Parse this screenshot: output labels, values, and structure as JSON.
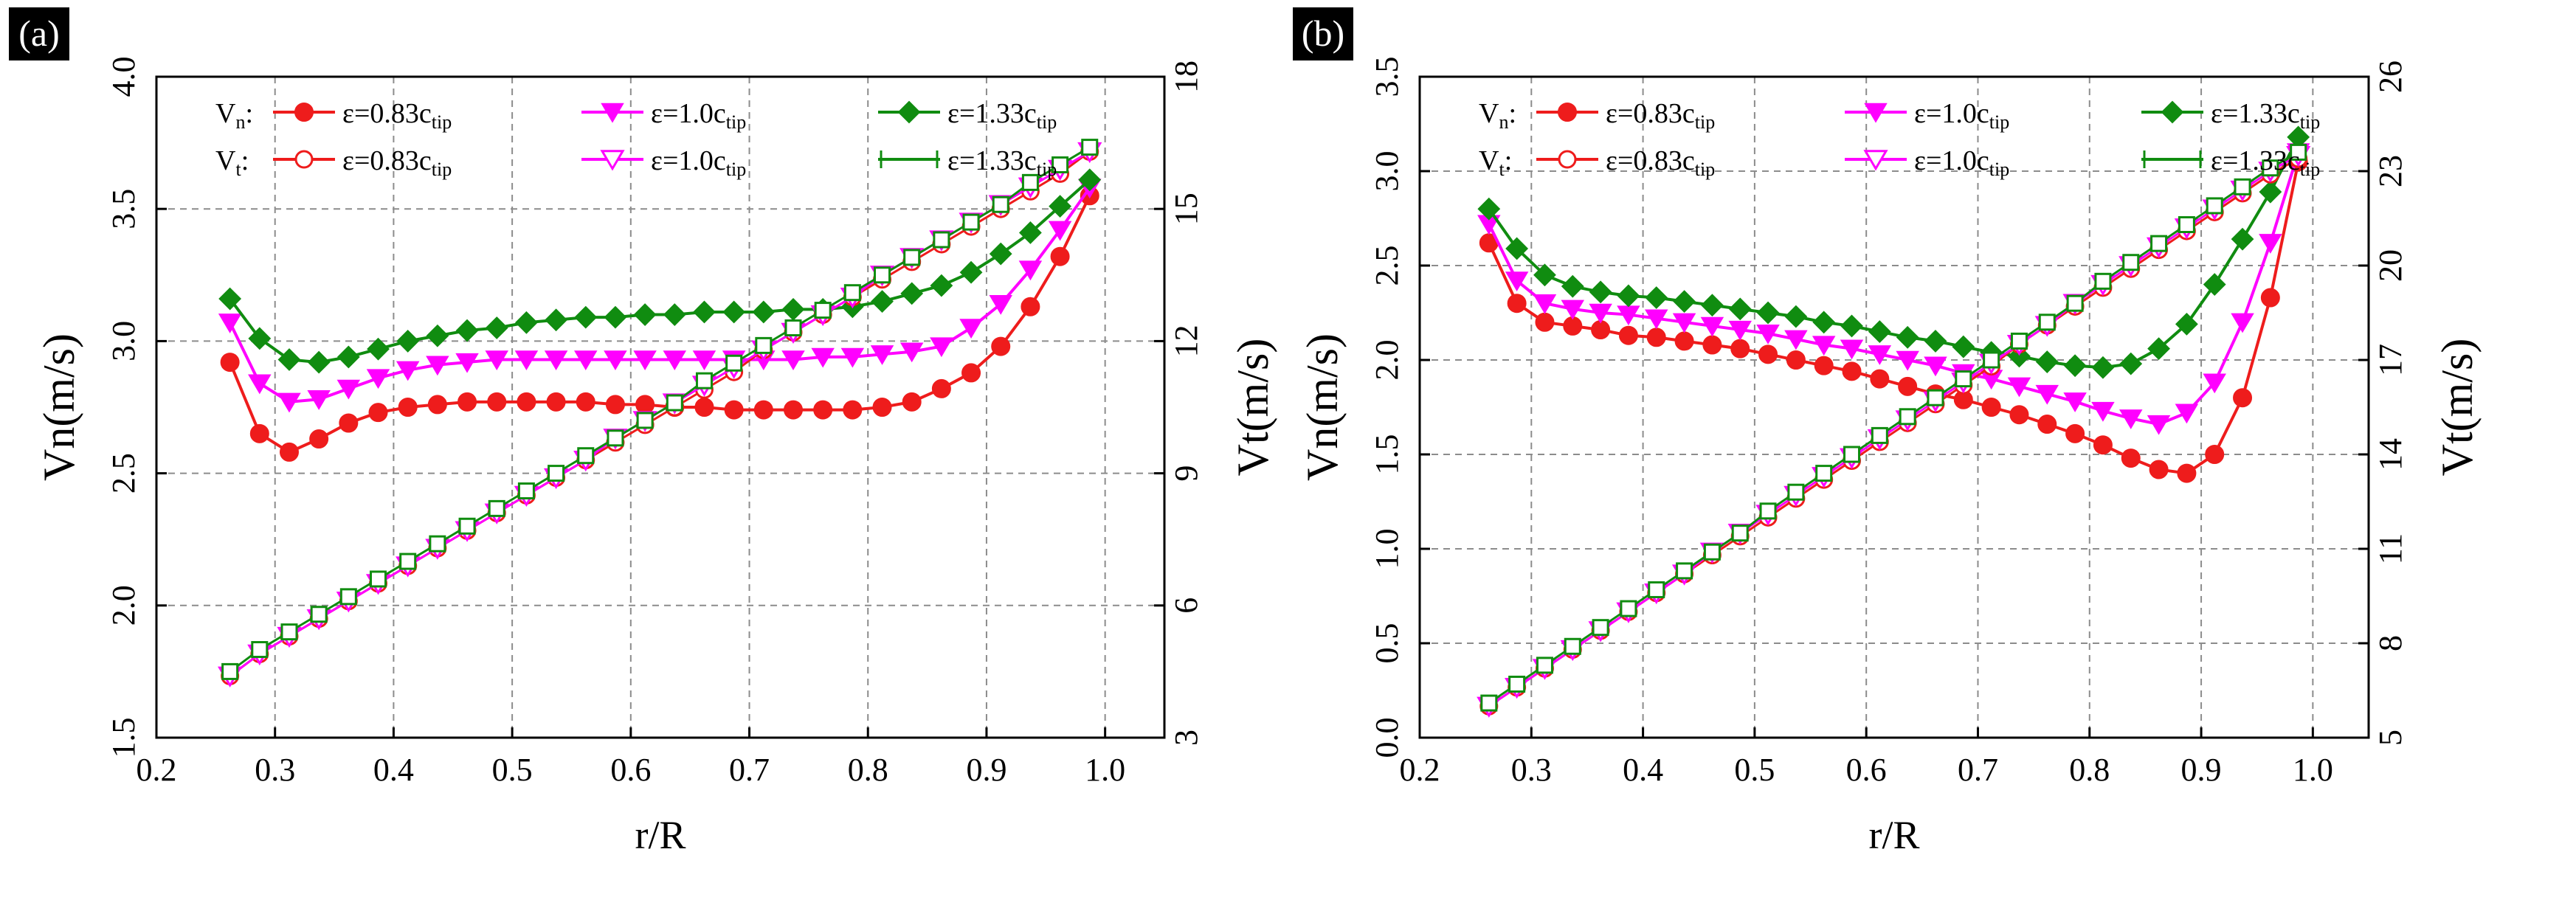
{
  "figure": {
    "panels": [
      "(a)",
      "(b)"
    ]
  },
  "legend": {
    "vn_prefix": "V",
    "vn_sub": "n",
    "vt_prefix": "V",
    "vt_sub": "t",
    "colon": ":",
    "eps_prefix": "ε=",
    "c_letter": "c",
    "tip_sub": "tip",
    "coefs": [
      "0.83",
      "1.0",
      "1.33"
    ]
  },
  "styles": {
    "series_colors": [
      "#ee1c1c",
      "#ff00ff",
      "#108c10"
    ],
    "grid_color": "#8c8c8c"
  },
  "chart_data": [
    {
      "type": "line",
      "panel": "(a)",
      "xlabel": "r/R",
      "ylabel_left": "Vn(m/s)",
      "ylabel_right": "Vt(m/s)",
      "xlim": [
        0.2,
        1.05
      ],
      "ylim_left": [
        1.5,
        4.0
      ],
      "ylim_right": [
        3,
        18
      ],
      "x_ticks": [
        "0.2",
        "0.3",
        "0.4",
        "0.5",
        "0.6",
        "0.7",
        "0.8",
        "0.9",
        "1.0"
      ],
      "y_left_ticks": [
        "1.5",
        "2.0",
        "2.5",
        "3.0",
        "3.5",
        "4.0"
      ],
      "y_right_ticks": [
        "3",
        "6",
        "9",
        "12",
        "15",
        "18"
      ],
      "x": [
        0.262,
        0.287,
        0.312,
        0.337,
        0.362,
        0.387,
        0.412,
        0.437,
        0.462,
        0.487,
        0.512,
        0.537,
        0.562,
        0.587,
        0.612,
        0.637,
        0.662,
        0.687,
        0.712,
        0.737,
        0.762,
        0.787,
        0.812,
        0.837,
        0.862,
        0.887,
        0.912,
        0.937,
        0.962,
        0.987
      ],
      "series": [
        {
          "name": "Vn: ε=0.83c_tip",
          "axis": "left",
          "marker": "circle",
          "filled": true,
          "values": [
            2.92,
            2.65,
            2.58,
            2.63,
            2.69,
            2.73,
            2.75,
            2.76,
            2.77,
            2.77,
            2.77,
            2.77,
            2.77,
            2.76,
            2.76,
            2.75,
            2.75,
            2.74,
            2.74,
            2.74,
            2.74,
            2.74,
            2.75,
            2.77,
            2.82,
            2.88,
            2.98,
            3.13,
            3.32,
            3.55
          ]
        },
        {
          "name": "Vn: ε=1.0c_tip",
          "axis": "left",
          "marker": "triangle-down",
          "filled": true,
          "values": [
            3.07,
            2.84,
            2.77,
            2.78,
            2.82,
            2.86,
            2.89,
            2.91,
            2.92,
            2.93,
            2.93,
            2.93,
            2.93,
            2.93,
            2.93,
            2.93,
            2.93,
            2.93,
            2.93,
            2.93,
            2.94,
            2.94,
            2.95,
            2.96,
            2.98,
            3.05,
            3.14,
            3.27,
            3.42,
            3.58
          ]
        },
        {
          "name": "Vn: ε=1.33c_tip",
          "axis": "left",
          "marker": "diamond",
          "filled": true,
          "values": [
            3.16,
            3.01,
            2.93,
            2.92,
            2.94,
            2.97,
            3.0,
            3.02,
            3.04,
            3.05,
            3.07,
            3.08,
            3.09,
            3.09,
            3.1,
            3.1,
            3.11,
            3.11,
            3.11,
            3.12,
            3.12,
            3.13,
            3.15,
            3.18,
            3.21,
            3.26,
            3.33,
            3.41,
            3.51,
            3.61
          ]
        },
        {
          "name": "Vt: ε=0.83c_tip",
          "axis": "right",
          "marker": "circle",
          "filled": false,
          "values": [
            4.4,
            4.9,
            5.3,
            5.7,
            6.1,
            6.5,
            6.9,
            7.3,
            7.7,
            8.1,
            8.5,
            8.9,
            9.3,
            9.7,
            10.1,
            10.5,
            10.9,
            11.3,
            11.8,
            12.2,
            12.6,
            13.0,
            13.4,
            13.8,
            14.2,
            14.6,
            15.0,
            15.4,
            15.8,
            16.3
          ]
        },
        {
          "name": "Vt: ε=1.0c_tip",
          "axis": "right",
          "marker": "triangle-down",
          "filled": false,
          "values": [
            4.4,
            4.9,
            5.3,
            5.7,
            6.1,
            6.5,
            6.9,
            7.3,
            7.7,
            8.1,
            8.5,
            8.9,
            9.3,
            9.8,
            10.2,
            10.6,
            11.0,
            11.4,
            11.8,
            12.2,
            12.6,
            13.0,
            13.5,
            13.9,
            14.3,
            14.7,
            15.1,
            15.5,
            15.9,
            16.3
          ]
        },
        {
          "name": "Vt: ε=1.33c_tip",
          "axis": "right",
          "marker": "square",
          "filled": false,
          "values": [
            4.5,
            5.0,
            5.4,
            5.8,
            6.2,
            6.6,
            7.0,
            7.4,
            7.8,
            8.2,
            8.6,
            9.0,
            9.4,
            9.8,
            10.2,
            10.6,
            11.1,
            11.5,
            11.9,
            12.3,
            12.7,
            13.1,
            13.5,
            13.9,
            14.3,
            14.7,
            15.1,
            15.6,
            16.0,
            16.4
          ]
        }
      ]
    },
    {
      "type": "line",
      "panel": "(b)",
      "xlabel": "r/R",
      "ylabel_left": "Vn(m/s)",
      "ylabel_right": "Vt(m/s)",
      "xlim": [
        0.2,
        1.05
      ],
      "ylim_left": [
        0.0,
        3.5
      ],
      "ylim_right": [
        5,
        26
      ],
      "x_ticks": [
        "0.2",
        "0.3",
        "0.4",
        "0.5",
        "0.6",
        "0.7",
        "0.8",
        "0.9",
        "1.0"
      ],
      "y_left_ticks": [
        "0.0",
        "0.5",
        "1.0",
        "1.5",
        "2.0",
        "2.5",
        "3.0",
        "3.5"
      ],
      "y_right_ticks": [
        "5",
        "8",
        "11",
        "14",
        "17",
        "20",
        "23",
        "26"
      ],
      "x": [
        0.262,
        0.287,
        0.312,
        0.337,
        0.362,
        0.387,
        0.412,
        0.437,
        0.462,
        0.487,
        0.512,
        0.537,
        0.562,
        0.587,
        0.612,
        0.637,
        0.662,
        0.687,
        0.712,
        0.737,
        0.762,
        0.787,
        0.812,
        0.837,
        0.862,
        0.887,
        0.912,
        0.937,
        0.962,
        0.987
      ],
      "series": [
        {
          "name": "Vn: ε=0.83c_tip",
          "axis": "left",
          "marker": "circle",
          "filled": true,
          "values": [
            2.62,
            2.3,
            2.2,
            2.18,
            2.16,
            2.13,
            2.12,
            2.1,
            2.08,
            2.06,
            2.03,
            2.0,
            1.97,
            1.94,
            1.9,
            1.86,
            1.82,
            1.79,
            1.75,
            1.71,
            1.66,
            1.61,
            1.55,
            1.48,
            1.42,
            1.4,
            1.5,
            1.8,
            2.33,
            3.05
          ]
        },
        {
          "name": "Vn: ε=1.0c_tip",
          "axis": "left",
          "marker": "triangle-down",
          "filled": true,
          "values": [
            2.72,
            2.42,
            2.3,
            2.27,
            2.25,
            2.24,
            2.22,
            2.2,
            2.18,
            2.16,
            2.14,
            2.11,
            2.08,
            2.06,
            2.03,
            2.0,
            1.97,
            1.93,
            1.9,
            1.86,
            1.82,
            1.78,
            1.73,
            1.69,
            1.66,
            1.72,
            1.88,
            2.2,
            2.62,
            3.1
          ]
        },
        {
          "name": "Vn: ε=1.33c_tip",
          "axis": "left",
          "marker": "diamond",
          "filled": true,
          "values": [
            2.8,
            2.59,
            2.45,
            2.39,
            2.36,
            2.34,
            2.33,
            2.31,
            2.29,
            2.27,
            2.25,
            2.23,
            2.2,
            2.18,
            2.15,
            2.12,
            2.1,
            2.07,
            2.04,
            2.02,
            1.99,
            1.97,
            1.96,
            1.98,
            2.06,
            2.19,
            2.4,
            2.64,
            2.89,
            3.18
          ]
        },
        {
          "name": "Vt: ε=0.83c_tip",
          "axis": "right",
          "marker": "circle",
          "filled": false,
          "values": [
            6.0,
            6.6,
            7.2,
            7.8,
            8.4,
            9.0,
            9.6,
            10.2,
            10.8,
            11.4,
            12.0,
            12.6,
            13.2,
            13.8,
            14.4,
            15.0,
            15.6,
            16.2,
            16.8,
            17.5,
            18.1,
            18.7,
            19.3,
            19.9,
            20.5,
            21.1,
            21.7,
            22.3,
            22.9,
            23.4
          ]
        },
        {
          "name": "Vt: ε=1.0c_tip",
          "axis": "right",
          "marker": "triangle-down",
          "filled": false,
          "values": [
            6.0,
            6.6,
            7.2,
            7.8,
            8.4,
            9.0,
            9.6,
            10.2,
            10.9,
            11.5,
            12.1,
            12.7,
            13.3,
            13.9,
            14.5,
            15.1,
            15.7,
            16.3,
            16.9,
            17.5,
            18.1,
            18.8,
            19.4,
            20.0,
            20.6,
            21.2,
            21.8,
            22.4,
            23.0,
            23.5
          ]
        },
        {
          "name": "Vt: ε=1.33c_tip",
          "axis": "right",
          "marker": "square",
          "filled": false,
          "values": [
            6.1,
            6.7,
            7.3,
            7.9,
            8.5,
            9.1,
            9.7,
            10.3,
            10.9,
            11.5,
            12.2,
            12.8,
            13.4,
            14.0,
            14.6,
            15.2,
            15.8,
            16.4,
            17.0,
            17.6,
            18.2,
            18.8,
            19.5,
            20.1,
            20.7,
            21.3,
            21.9,
            22.5,
            23.1,
            23.6
          ]
        }
      ]
    }
  ]
}
